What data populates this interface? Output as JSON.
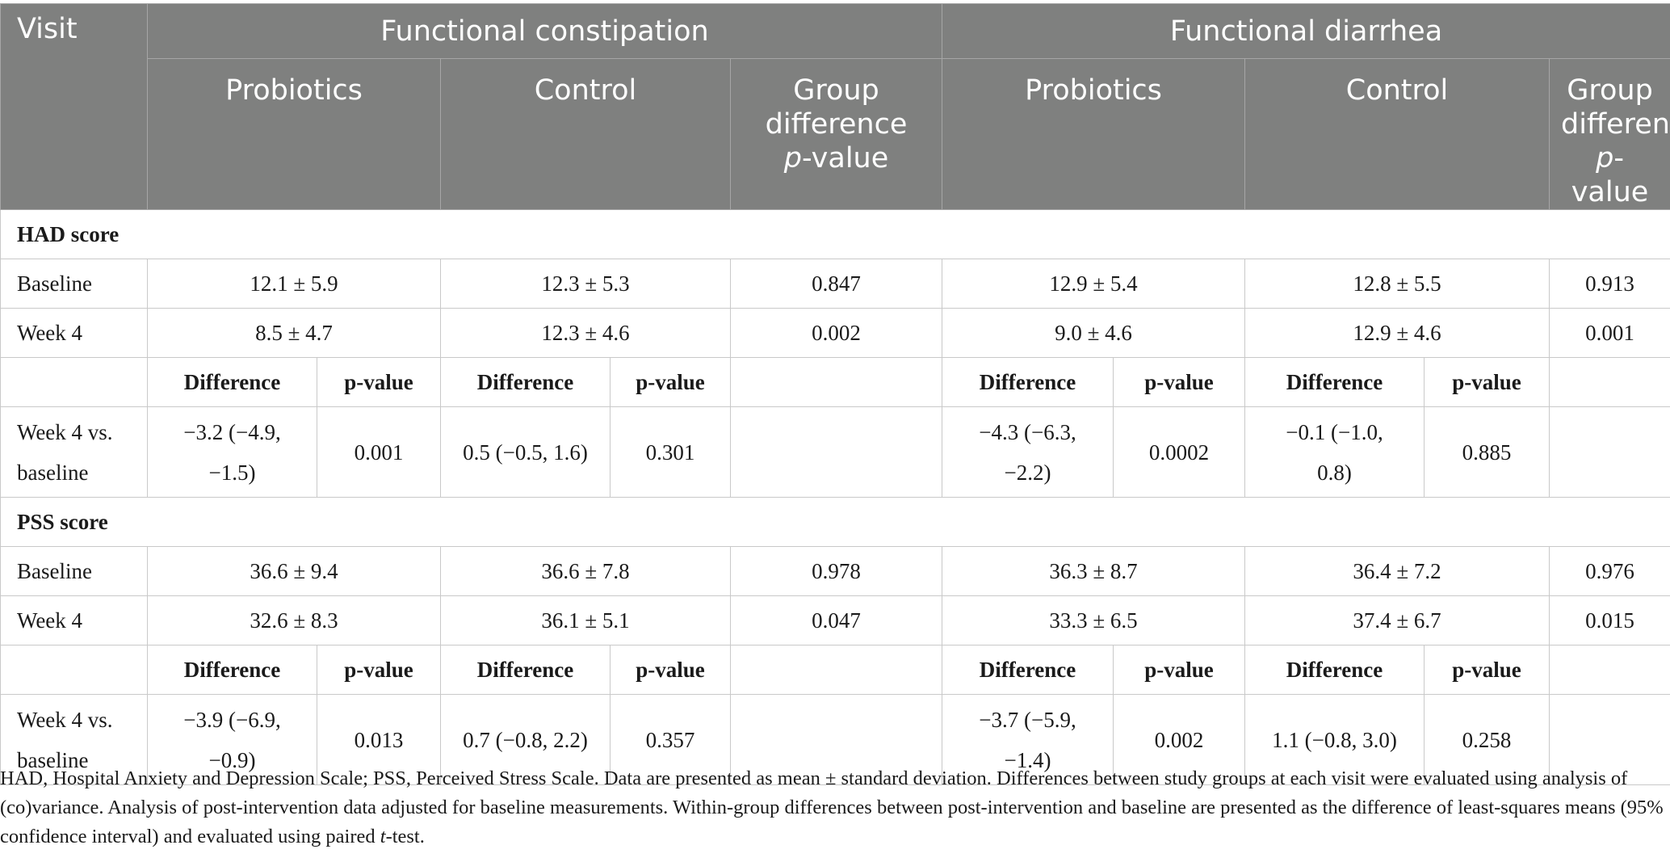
{
  "header": {
    "visit": "Visit",
    "group_fc": "Functional constipation",
    "group_fd": "Functional diarrhea",
    "probiotics": "Probiotics",
    "control": "Control",
    "group_diff_1": "Group difference",
    "p_value_p": "p",
    "p_value_rest": "-value",
    "group_diff_fd_line1": "Group difference ",
    "group_diff_fd_p": "p",
    "group_diff_fd_dash": "-",
    "group_diff_fd_line2": "value"
  },
  "sections": [
    {
      "title": "HAD score",
      "rows": [
        {
          "label": "Baseline",
          "fc_prob": "12.1 ± 5.9",
          "fc_ctrl": "12.3 ± 5.3",
          "fc_p": "0.847",
          "fd_prob": "12.9 ± 5.4",
          "fd_ctrl": "12.8 ± 5.5",
          "fd_p": "0.913"
        },
        {
          "label": "Week 4",
          "fc_prob": "8.5 ± 4.7",
          "fc_ctrl": "12.3 ± 4.6",
          "fc_p": "0.002",
          "fd_prob": "9.0 ± 4.6",
          "fd_ctrl": "12.9 ± 4.6",
          "fd_p": "0.001"
        }
      ],
      "sub_header": {
        "difference": "Difference",
        "p_value": "p-value"
      },
      "change": {
        "label_line1": "Week 4 vs.",
        "label_line2": "baseline",
        "fc_prob_diff_1": "−3.2 (−4.9,",
        "fc_prob_diff_2": "−1.5)",
        "fc_prob_p": "0.001",
        "fc_ctrl_diff": "0.5 (−0.5, 1.6)",
        "fc_ctrl_p": "0.301",
        "fd_prob_diff_1": "−4.3 (−6.3,",
        "fd_prob_diff_2": "−2.2)",
        "fd_prob_p": "0.0002",
        "fd_ctrl_diff_1": "−0.1 (−1.0,",
        "fd_ctrl_diff_2": "0.8)",
        "fd_ctrl_p": "0.885"
      }
    },
    {
      "title": "PSS score",
      "rows": [
        {
          "label": "Baseline",
          "fc_prob": "36.6 ± 9.4",
          "fc_ctrl": "36.6 ± 7.8",
          "fc_p": "0.978",
          "fd_prob": "36.3 ± 8.7",
          "fd_ctrl": "36.4 ± 7.2",
          "fd_p": "0.976"
        },
        {
          "label": "Week 4",
          "fc_prob": "32.6 ± 8.3",
          "fc_ctrl": "36.1 ± 5.1",
          "fc_p": "0.047",
          "fd_prob": "33.3 ± 6.5",
          "fd_ctrl": "37.4 ± 6.7",
          "fd_p": "0.015"
        }
      ],
      "sub_header": {
        "difference": "Difference",
        "p_value": "p-value"
      },
      "change": {
        "label_line1": "Week 4 vs.",
        "label_line2": "baseline",
        "fc_prob_diff_1": "−3.9 (−6.9,",
        "fc_prob_diff_2": "−0.9)",
        "fc_prob_p": "0.013",
        "fc_ctrl_diff": "0.7 (−0.8, 2.2)",
        "fc_ctrl_p": "0.357",
        "fd_prob_diff_1": "−3.7 (−5.9,",
        "fd_prob_diff_2": "−1.4)",
        "fd_prob_p": "0.002",
        "fd_ctrl_diff": "1.1 (−0.8, 3.0)",
        "fd_ctrl_p": "0.258"
      }
    }
  ],
  "footnote": {
    "part1": "HAD, Hospital Anxiety and Depression Scale; PSS, Perceived Stress Scale. Data are presented as mean ± standard deviation. Differences between study groups at each visit were evaluated using analysis of (co)variance. Analysis of post-intervention data adjusted for baseline measurements. Within-group differences between post-intervention and baseline are presented as the difference of least-squares means (95% confidence interval) and evaluated using paired ",
    "t": "t",
    "part2": "-test."
  }
}
